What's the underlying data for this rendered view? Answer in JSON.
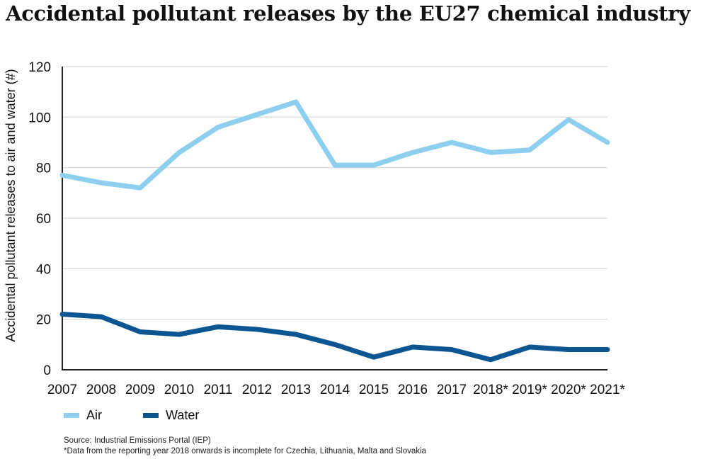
{
  "chart_data": {
    "type": "line",
    "title": "Accidental pollutant releases by the EU27 chemical industry",
    "xlabel": "",
    "ylabel": "Accidental pollutant releases to air and water (#)",
    "ylim": [
      0,
      120
    ],
    "yticks": [
      0,
      20,
      40,
      60,
      80,
      100,
      120
    ],
    "grid": true,
    "legend_position": "bottom-left",
    "categories": [
      "2007",
      "2008",
      "2009",
      "2010",
      "2011",
      "2012",
      "2013",
      "2014",
      "2015",
      "2016",
      "2017",
      "2018*",
      "2019*",
      "2020*",
      "2021*"
    ],
    "series": [
      {
        "name": "Air",
        "color": "#8ecff0",
        "values": [
          77,
          74,
          72,
          86,
          96,
          101,
          106,
          81,
          81,
          86,
          90,
          86,
          87,
          99,
          90
        ]
      },
      {
        "name": "Water",
        "color": "#0a5592",
        "values": [
          22,
          21,
          15,
          14,
          17,
          16,
          14,
          10,
          5,
          9,
          8,
          4,
          9,
          8,
          8
        ]
      }
    ],
    "source": "Source: Industrial Emissions Portal (IEP)",
    "footnote": "*Data from the reporting year 2018 onwards is incomplete for Czechia, Lithuania, Malta and Slovakia"
  }
}
